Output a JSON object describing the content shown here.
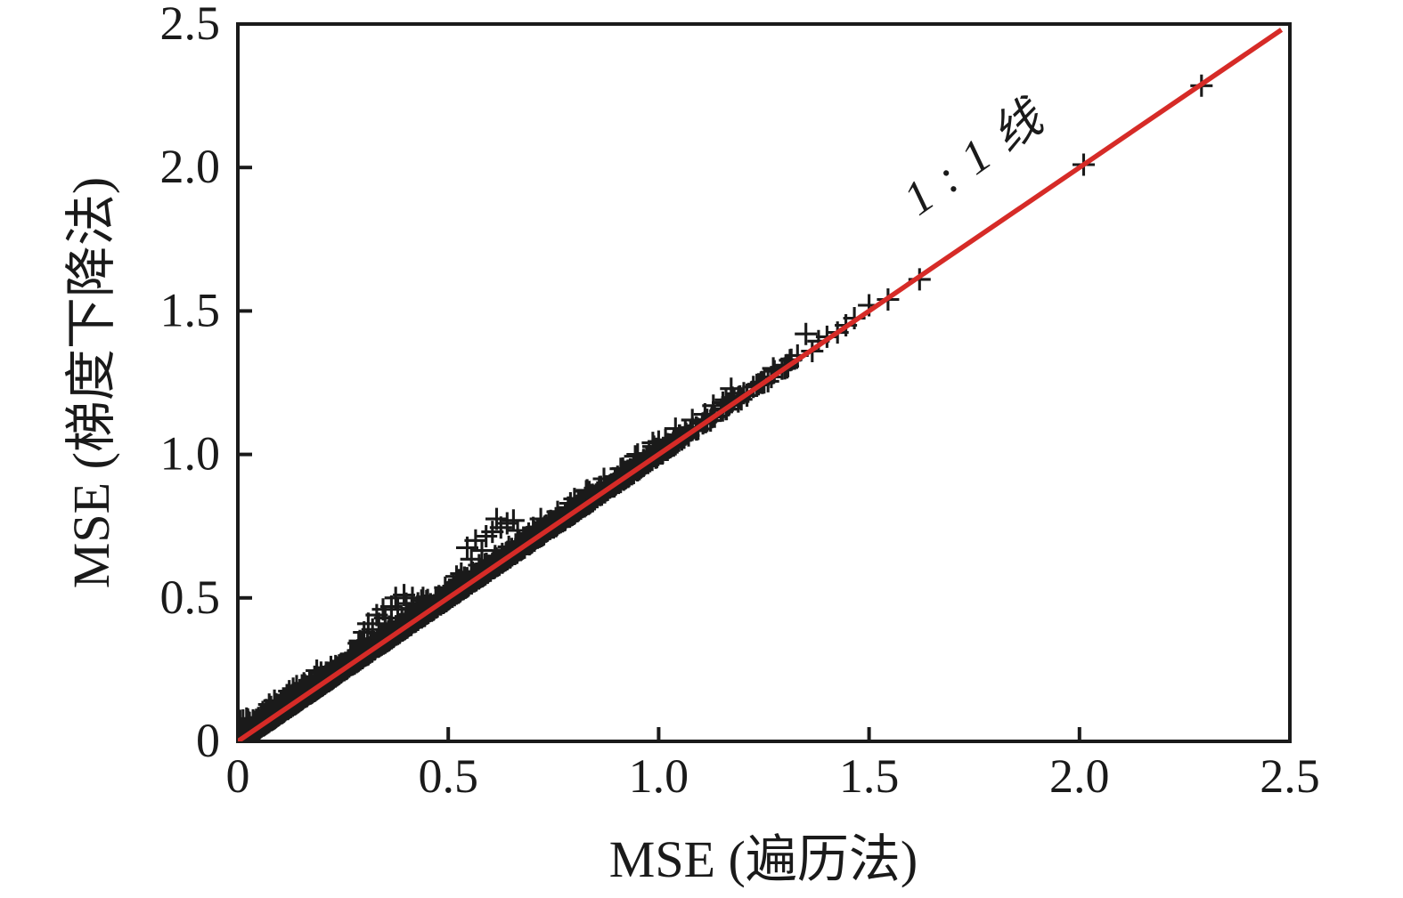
{
  "chart_data": {
    "type": "scatter",
    "title": "",
    "xlabel": "MSE (遍历法)",
    "ylabel": "MSE (梯度下降法)",
    "xlim": [
      0,
      2.5
    ],
    "ylim": [
      0,
      2.5
    ],
    "xticks": [
      0,
      0.5,
      1.0,
      1.5,
      2.0,
      2.5
    ],
    "xtick_labels": [
      "0",
      "0.5",
      "1.0",
      "1.5",
      "2.0",
      "2.5"
    ],
    "yticks": [
      0,
      0.5,
      1.0,
      1.5,
      2.0,
      2.5
    ],
    "ytick_labels": [
      "0",
      "0.5",
      "1.0",
      "1.5",
      "2.0",
      "2.5"
    ],
    "grid": false,
    "legend_position": "none",
    "axis_color": "#1a1a1a",
    "marker": "plus",
    "marker_color": "#1a1a1a",
    "marker_size_px": 25,
    "reference_line": {
      "label": "1 : 1 线",
      "color": "#d62b27",
      "from": [
        0,
        0
      ],
      "to": [
        2.48,
        2.48
      ]
    },
    "points": [
      [
        0.29,
        0.35
      ],
      [
        0.3,
        0.38
      ],
      [
        0.31,
        0.41
      ],
      [
        0.32,
        0.39
      ],
      [
        0.33,
        0.44
      ],
      [
        0.335,
        0.41
      ],
      [
        0.345,
        0.46
      ],
      [
        0.35,
        0.43
      ],
      [
        0.36,
        0.4
      ],
      [
        0.365,
        0.47
      ],
      [
        0.375,
        0.5
      ],
      [
        0.38,
        0.46
      ],
      [
        0.39,
        0.43
      ],
      [
        0.395,
        0.51
      ],
      [
        0.4,
        0.48
      ],
      [
        0.415,
        0.5
      ],
      [
        0.43,
        0.47
      ],
      [
        0.44,
        0.5
      ],
      [
        0.545,
        0.675
      ],
      [
        0.555,
        0.635
      ],
      [
        0.565,
        0.7
      ],
      [
        0.58,
        0.665
      ],
      [
        0.59,
        0.715
      ],
      [
        0.605,
        0.73
      ],
      [
        0.615,
        0.775
      ],
      [
        0.625,
        0.745
      ],
      [
        0.64,
        0.76
      ],
      [
        0.655,
        0.77
      ],
      [
        0.665,
        0.735
      ],
      [
        0.72,
        0.775
      ],
      [
        0.76,
        0.8
      ],
      [
        0.8,
        0.845
      ],
      [
        0.83,
        0.875
      ],
      [
        0.87,
        0.915
      ],
      [
        0.91,
        0.95
      ],
      [
        0.95,
        1.0
      ],
      [
        1.0,
        1.045
      ],
      [
        1.04,
        1.09
      ],
      [
        1.08,
        1.12
      ],
      [
        1.11,
        1.14
      ],
      [
        1.13,
        1.17
      ],
      [
        1.16,
        1.19
      ],
      [
        1.19,
        1.2
      ],
      [
        1.21,
        1.205
      ],
      [
        1.225,
        1.235
      ],
      [
        1.245,
        1.25
      ],
      [
        1.26,
        1.255
      ],
      [
        1.275,
        1.29
      ],
      [
        1.3,
        1.3
      ],
      [
        1.315,
        1.33
      ],
      [
        1.33,
        1.345
      ],
      [
        1.35,
        1.42
      ],
      [
        1.365,
        1.36
      ],
      [
        1.38,
        1.395
      ],
      [
        1.4,
        1.41
      ],
      [
        1.425,
        1.425
      ],
      [
        1.445,
        1.45
      ],
      [
        1.465,
        1.475
      ],
      [
        1.5,
        1.52
      ],
      [
        1.545,
        1.54
      ],
      [
        1.62,
        1.61
      ],
      [
        2.01,
        2.01
      ],
      [
        2.29,
        2.285
      ]
    ],
    "dense_band": {
      "description": "Thousands of + markers hugging the 1:1 line; y is slightly >= x with occasional upward spikes; density decreases with x and band ends near x=1.32",
      "seed": 20,
      "segments": [
        {
          "x_min": 0.0,
          "x_max": 0.25,
          "count": 1500
        },
        {
          "x_min": 0.25,
          "x_max": 0.55,
          "count": 950
        },
        {
          "x_min": 0.55,
          "x_max": 0.85,
          "count": 520
        },
        {
          "x_min": 0.85,
          "x_max": 1.05,
          "count": 210
        },
        {
          "x_min": 1.05,
          "x_max": 1.2,
          "count": 45
        },
        {
          "x_min": 1.2,
          "x_max": 1.32,
          "count": 16
        }
      ],
      "offset_base": -0.006,
      "offset_sigma": 0.012,
      "gauss_cap": 3,
      "spike_prob": 0.04,
      "spike_range": [
        0.015,
        0.048
      ]
    }
  }
}
